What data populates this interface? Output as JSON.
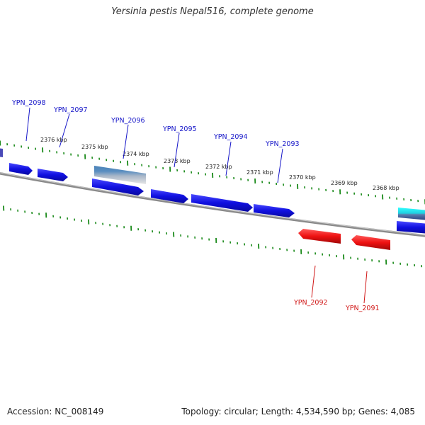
{
  "title": "Yersinia pestis Nepal516, complete genome",
  "footer": {
    "accession": "Accession: NC_008149",
    "stats": "Topology: circular; Length: 4,534,590 bp; Genes: 4,085"
  },
  "colors": {
    "forward_gene": "#1010e0",
    "reverse_gene": "#ee1111",
    "tick": "#1a8a1a",
    "backbone": "#808080",
    "label_forward": "#1515c8",
    "label_reverse": "#d01515"
  },
  "scale_labels": [
    "2376 kbp",
    "2375 kbp",
    "2374 kbp",
    "2373 kbp",
    "2372 kbp",
    "2371 kbp",
    "2370 kbp",
    "2369 kbp",
    "2368 kbp"
  ],
  "gene_labels_forward": [
    "YPN_2098",
    "YPN_2097",
    "YPN_2096",
    "YPN_2095",
    "YPN_2094",
    "YPN_2093"
  ],
  "gene_labels_reverse": [
    "YPN_2092",
    "YPN_2091"
  ]
}
